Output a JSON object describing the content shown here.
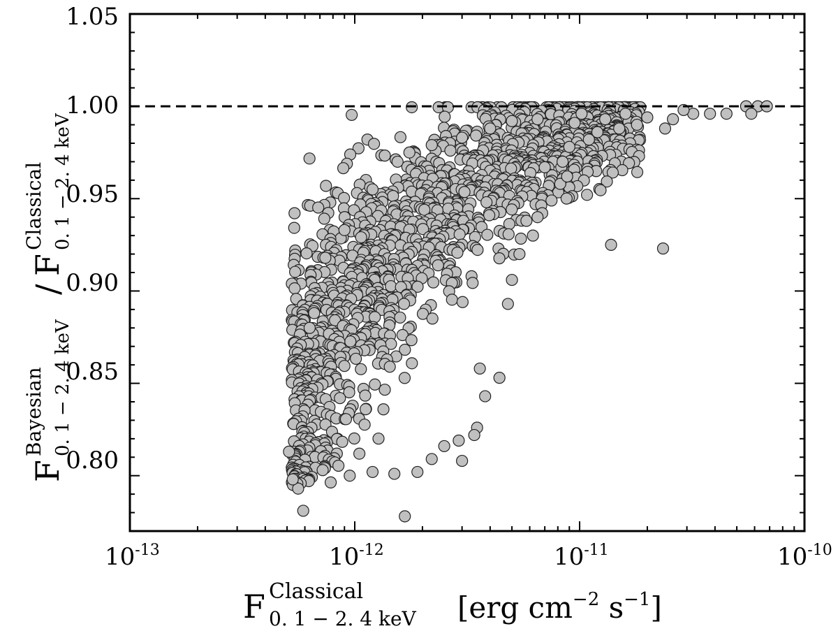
{
  "chart_data": {
    "type": "scatter",
    "xscale": "log",
    "xlim": [
      1e-13,
      1e-10
    ],
    "ylim": [
      0.77,
      1.05
    ],
    "x_ticks": [
      {
        "value": 1e-13,
        "base": "10",
        "exp": "-13"
      },
      {
        "value": 1e-12,
        "base": "10",
        "exp": "-12"
      },
      {
        "value": 1e-11,
        "base": "10",
        "exp": "-11"
      },
      {
        "value": 1e-10,
        "base": "10",
        "exp": "-10"
      }
    ],
    "y_ticks": [
      {
        "value": 0.8,
        "label": "0.80"
      },
      {
        "value": 0.85,
        "label": "0.85"
      },
      {
        "value": 0.9,
        "label": "0.90"
      },
      {
        "value": 0.95,
        "label": "0.95"
      },
      {
        "value": 1.0,
        "label": "1.00"
      },
      {
        "value": 1.05,
        "label": "1.05"
      }
    ],
    "xlabel": {
      "symbol": "F",
      "superscript": "Classical",
      "subscript": "0. 1 − 2. 4 keV",
      "units": "[erg cm",
      "units_exp1": "−2",
      "units_mid": " s",
      "units_exp2": "−1",
      "units_end": "]"
    },
    "ylabel": {
      "num_symbol": "F",
      "num_superscript": "Bayesian",
      "num_subscript": "0. 1 − 2. 4 keV",
      "divider": "/",
      "den_symbol": "F",
      "den_superscript": "Classical",
      "den_subscript": "0. 1 − 2. 4 keV"
    },
    "reference_line": {
      "y": 1.0,
      "style": "dashed"
    },
    "marker": {
      "fill": "#c0c0c0",
      "edge": "#222222"
    },
    "points": [
      [
        5.9e-13,
        0.781
      ],
      [
        1.67e-12,
        0.778
      ],
      [
        1.38e-11,
        0.925
      ],
      [
        2.35e-11,
        0.923
      ],
      [
        5.5e-11,
        1.0
      ],
      [
        6.2e-11,
        1.0
      ],
      [
        6.8e-11,
        1.0
      ],
      [
        5.8e-11,
        0.996
      ],
      [
        4.5e-11,
        0.996
      ],
      [
        3.8e-11,
        0.996
      ],
      [
        3.2e-11,
        0.996
      ],
      [
        2.9e-11,
        0.998
      ],
      [
        2.6e-11,
        0.993
      ],
      [
        2.4e-11,
        0.988
      ],
      [
        2e-11,
        0.994
      ],
      [
        1.8e-11,
        0.99
      ],
      [
        1.6e-11,
        0.996
      ],
      [
        1.5e-11,
        0.988
      ],
      [
        1.3e-11,
        0.993
      ],
      [
        1.2e-11,
        0.986
      ],
      [
        1.1e-11,
        0.982
      ],
      [
        1.02e-11,
        0.996
      ],
      [
        9.5e-12,
        0.991
      ],
      [
        9e-12,
        0.978
      ],
      [
        8.4e-12,
        0.97
      ],
      [
        8.2e-12,
        0.958
      ],
      [
        8.8e-12,
        0.962
      ],
      [
        7.5e-12,
        0.949
      ],
      [
        7e-12,
        0.967
      ],
      [
        6.5e-12,
        0.94
      ],
      [
        6.2e-12,
        0.93
      ],
      [
        5.8e-12,
        0.938
      ],
      [
        5.4e-12,
        0.92
      ],
      [
        5e-12,
        0.906
      ],
      [
        4.8e-12,
        0.893
      ],
      [
        4.4e-12,
        0.853
      ],
      [
        3.8e-12,
        0.843
      ],
      [
        3.6e-12,
        0.858
      ],
      [
        3.5e-12,
        0.826
      ],
      [
        3.4e-12,
        0.822
      ],
      [
        3e-12,
        0.808
      ],
      [
        2.9e-12,
        0.819
      ],
      [
        2.5e-12,
        0.816
      ],
      [
        2.2e-12,
        0.809
      ],
      [
        1.9e-12,
        0.802
      ],
      [
        1.5e-12,
        0.801
      ],
      [
        1.2e-12,
        0.802
      ],
      [
        9.5e-13,
        0.8
      ],
      [
        7.2e-13,
        0.803
      ],
      [
        5.6e-13,
        0.793
      ],
      [
        5.3e-13,
        0.798
      ],
      [
        5.1e-13,
        0.813
      ],
      [
        6.3e-13,
        0.88
      ],
      [
        6.6e-13,
        0.888
      ],
      [
        7.4e-13,
        0.918
      ],
      [
        9e-13,
        0.933
      ],
      [
        1.2e-12,
        0.955
      ],
      [
        1.55e-12,
        0.97
      ],
      [
        1.75e-12,
        0.975
      ],
      [
        2.2e-12,
        0.979
      ],
      [
        3e-12,
        0.983
      ],
      [
        4e-12,
        0.988
      ],
      [
        5e-12,
        0.992
      ],
      [
        6.5e-12,
        0.993
      ]
    ]
  }
}
